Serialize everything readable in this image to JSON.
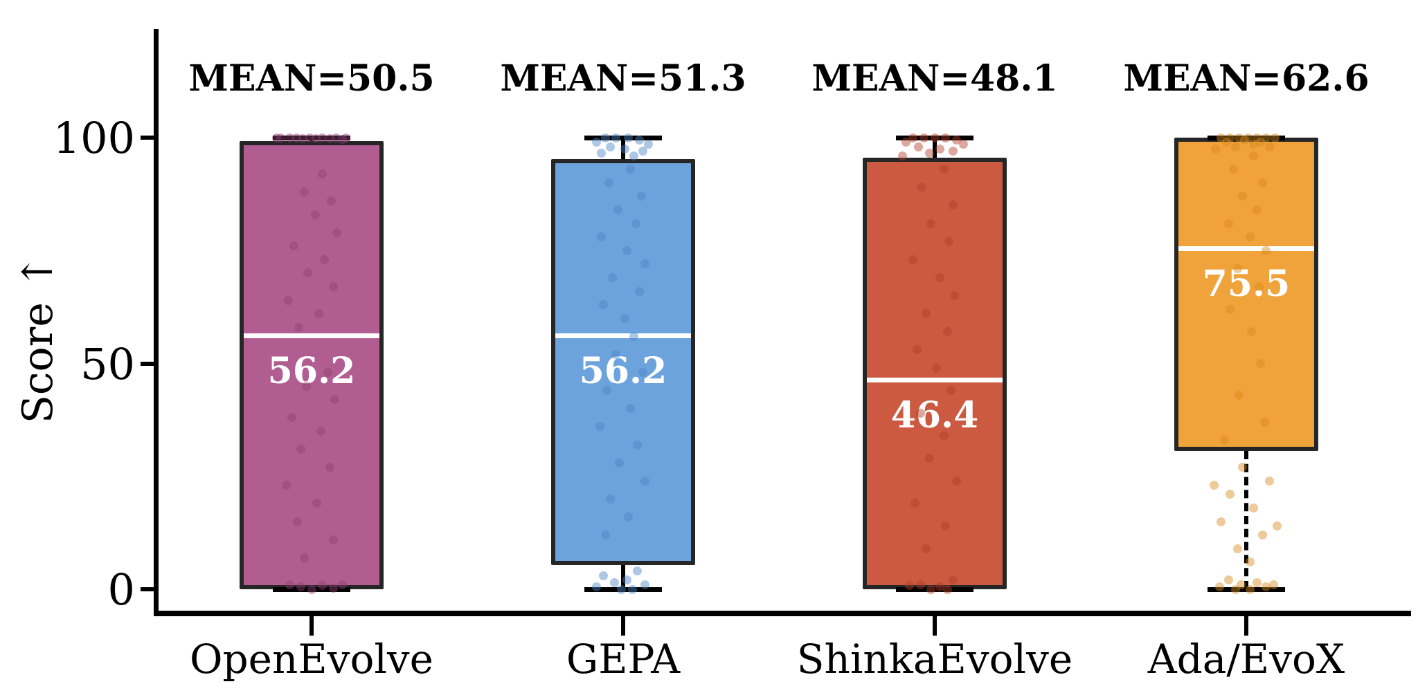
{
  "chart_data": {
    "type": "box",
    "title": "",
    "xlabel": "",
    "ylabel": "Score ↑",
    "ylim": [
      0,
      100
    ],
    "yticks": [
      {
        "value": 100,
        "label": "100"
      },
      {
        "value": 50,
        "label": "50"
      },
      {
        "value": 0,
        "label": "0"
      }
    ],
    "grid": false,
    "legend": "none",
    "categories": [
      "OpenEvolve",
      "GEPA",
      "ShinkaEvolve",
      "Ada/EvoX"
    ],
    "boxes": [
      {
        "category": "OpenEvolve",
        "mean": 50.5,
        "mean_label": "MEAN=50.5",
        "median": 56.2,
        "median_label": "56.2",
        "q1": 0,
        "q3": 99.2,
        "whisker_low": 0,
        "whisker_high": 100,
        "whisker_low_style": "solid",
        "fill": "#b25d92",
        "point_color": "#8e3d74",
        "points": [
          [
            100,
            -0.85
          ],
          [
            100,
            -0.6
          ],
          [
            100,
            -0.42
          ],
          [
            99.8,
            -0.25
          ],
          [
            100,
            -0.05
          ],
          [
            99.7,
            0.12
          ],
          [
            100,
            0.3
          ],
          [
            99.8,
            0.5
          ],
          [
            100,
            0.68
          ],
          [
            99.6,
            0.85
          ],
          [
            100,
            0.95
          ],
          [
            99.9,
            -0.98
          ],
          [
            92,
            0.3
          ],
          [
            88,
            -0.2
          ],
          [
            86,
            0.55
          ],
          [
            83,
            0.1
          ],
          [
            79,
            0.7
          ],
          [
            76,
            -0.5
          ],
          [
            73,
            0.35
          ],
          [
            70,
            -0.1
          ],
          [
            67,
            0.6
          ],
          [
            64,
            -0.65
          ],
          [
            61,
            0.2
          ],
          [
            58,
            -0.35
          ],
          [
            48,
            0.45
          ],
          [
            45,
            -0.15
          ],
          [
            42,
            0.65
          ],
          [
            38,
            -0.55
          ],
          [
            35,
            0.25
          ],
          [
            31,
            -0.3
          ],
          [
            27,
            0.5
          ],
          [
            23,
            -0.7
          ],
          [
            19,
            0.15
          ],
          [
            15,
            -0.4
          ],
          [
            11,
            0.6
          ],
          [
            7,
            -0.2
          ],
          [
            1,
            -0.6
          ],
          [
            0.5,
            -0.3
          ],
          [
            0,
            0
          ],
          [
            0.8,
            0.3
          ],
          [
            0.3,
            0.6
          ],
          [
            1,
            0.85
          ]
        ]
      },
      {
        "category": "GEPA",
        "mean": 51.3,
        "mean_label": "MEAN=51.3",
        "median": 56.2,
        "median_label": "56.2",
        "q1": 5.4,
        "q3": 95.3,
        "whisker_low": 0,
        "whisker_high": 100,
        "whisker_low_style": "solid",
        "fill": "#6da3dd",
        "point_color": "#4a82c4",
        "points": [
          [
            100,
            -0.5
          ],
          [
            100,
            -0.2
          ],
          [
            100,
            0.15
          ],
          [
            99.5,
            0.45
          ],
          [
            99,
            -0.75
          ],
          [
            98.5,
            0.7
          ],
          [
            98,
            -0.35
          ],
          [
            97.5,
            0.05
          ],
          [
            97,
            0.55
          ],
          [
            96.5,
            -0.6
          ],
          [
            96,
            0.3
          ],
          [
            93,
            0.2
          ],
          [
            90,
            -0.4
          ],
          [
            87,
            0.5
          ],
          [
            84,
            -0.15
          ],
          [
            81,
            0.35
          ],
          [
            78,
            -0.6
          ],
          [
            75,
            0.1
          ],
          [
            72,
            0.6
          ],
          [
            69,
            -0.3
          ],
          [
            66,
            0.45
          ],
          [
            63,
            -0.55
          ],
          [
            60,
            0.05
          ],
          [
            56,
            0.3
          ],
          [
            52,
            -0.2
          ],
          [
            48,
            0.55
          ],
          [
            44,
            -0.45
          ],
          [
            40,
            0.2
          ],
          [
            36,
            -0.65
          ],
          [
            32,
            0.4
          ],
          [
            28,
            -0.1
          ],
          [
            24,
            0.6
          ],
          [
            20,
            -0.35
          ],
          [
            16,
            0.15
          ],
          [
            12,
            -0.5
          ],
          [
            4,
            0.4
          ],
          [
            3,
            -0.55
          ],
          [
            2,
            0.1
          ],
          [
            1.5,
            -0.25
          ],
          [
            1,
            0.6
          ],
          [
            0.5,
            -0.75
          ],
          [
            0,
            0.25
          ],
          [
            0,
            -0.05
          ]
        ]
      },
      {
        "category": "ShinkaEvolve",
        "mean": 48.1,
        "mean_label": "MEAN=48.1",
        "median": 46.4,
        "median_label": "46.4",
        "q1": 0,
        "q3": 95.6,
        "whisker_low": 0,
        "whisker_high": 100,
        "whisker_low_style": "solid",
        "fill": "#cc5a41",
        "point_color": "#b03c28",
        "points": [
          [
            100,
            -0.6
          ],
          [
            100,
            -0.3
          ],
          [
            100,
            0
          ],
          [
            100,
            0.3
          ],
          [
            99.5,
            0.6
          ],
          [
            99,
            -0.8
          ],
          [
            98.5,
            0.8
          ],
          [
            98,
            -0.45
          ],
          [
            97.5,
            0.15
          ],
          [
            97,
            0.5
          ],
          [
            96.5,
            -0.15
          ],
          [
            96,
            -0.9
          ],
          [
            93,
            0.25
          ],
          [
            89,
            -0.35
          ],
          [
            85,
            0.5
          ],
          [
            81,
            -0.1
          ],
          [
            77,
            0.4
          ],
          [
            73,
            -0.6
          ],
          [
            69,
            0.15
          ],
          [
            65,
            0.55
          ],
          [
            61,
            -0.25
          ],
          [
            57,
            0.35
          ],
          [
            53,
            -0.5
          ],
          [
            49,
            0.05
          ],
          [
            44,
            0.45
          ],
          [
            39,
            -0.4
          ],
          [
            34,
            0.25
          ],
          [
            29,
            -0.15
          ],
          [
            24,
            0.6
          ],
          [
            19,
            -0.55
          ],
          [
            14,
            0.3
          ],
          [
            9,
            -0.25
          ],
          [
            2,
            0.5
          ],
          [
            1,
            -0.4
          ],
          [
            0.5,
            0.15
          ],
          [
            0,
            -0.1
          ],
          [
            0,
            0.35
          ],
          [
            0.8,
            -0.7
          ]
        ]
      },
      {
        "category": "Ada/EvoX",
        "mean": 62.6,
        "mean_label": "MEAN=62.6",
        "median": 75.5,
        "median_label": "75.5",
        "q1": 30.6,
        "q3": 100,
        "whisker_low": 0,
        "whisker_high": 100,
        "whisker_low_style": "dashed",
        "fill": "#f0a33a",
        "point_color": "#d88a1c",
        "points": [
          [
            100,
            -0.7
          ],
          [
            100,
            -0.45
          ],
          [
            100,
            -0.2
          ],
          [
            100,
            0.05
          ],
          [
            100,
            0.3
          ],
          [
            100,
            0.55
          ],
          [
            100,
            0.8
          ],
          [
            99.5,
            -0.05
          ],
          [
            99,
            0.4
          ],
          [
            99,
            -0.55
          ],
          [
            98.5,
            0.2
          ],
          [
            98,
            -0.3
          ],
          [
            98,
            0.65
          ],
          [
            97.5,
            -0.85
          ],
          [
            96,
            0.2
          ],
          [
            93,
            -0.35
          ],
          [
            90,
            0.45
          ],
          [
            87,
            -0.1
          ],
          [
            84,
            0.3
          ],
          [
            81,
            -0.5
          ],
          [
            78,
            0.1
          ],
          [
            75,
            0.55
          ],
          [
            71,
            -0.25
          ],
          [
            67,
            0.35
          ],
          [
            62,
            -0.45
          ],
          [
            57,
            0.15
          ],
          [
            50,
            0.4
          ],
          [
            43,
            -0.2
          ],
          [
            37,
            0.5
          ],
          [
            33,
            -0.6
          ],
          [
            27,
            -0.1
          ],
          [
            24,
            0.65
          ],
          [
            21,
            -0.45
          ],
          [
            18,
            0.2
          ],
          [
            15,
            -0.7
          ],
          [
            12,
            0.45
          ],
          [
            9,
            -0.25
          ],
          [
            6,
            0.1
          ],
          [
            23,
            -0.9
          ],
          [
            14,
            0.85
          ],
          [
            2,
            -0.5
          ],
          [
            1.5,
            0.3
          ],
          [
            1,
            -0.15
          ],
          [
            0.5,
            0.55
          ],
          [
            0,
            -0.3
          ],
          [
            0,
            0.1
          ],
          [
            0.5,
            -0.75
          ],
          [
            1,
            0.75
          ]
        ]
      }
    ],
    "style": {
      "box_border_color": "#262626",
      "whisker_color": "#000000",
      "median_line_color": "#ffffff",
      "axis_color": "#000000",
      "background": "#ffffff"
    }
  }
}
